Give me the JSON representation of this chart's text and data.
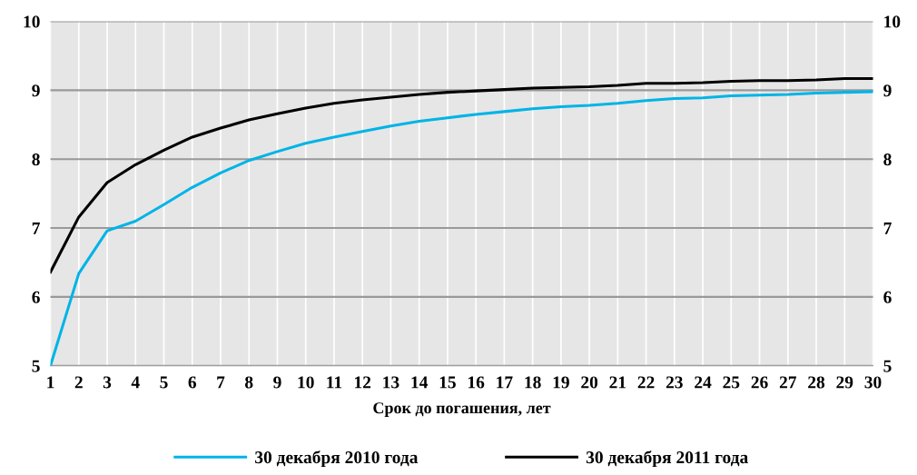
{
  "chart_data": {
    "type": "line",
    "xlabel": "Срок до погашения, лет",
    "categories": [
      "1",
      "2",
      "3",
      "4",
      "5",
      "6",
      "7",
      "8",
      "9",
      "10",
      "11",
      "12",
      "13",
      "14",
      "15",
      "16",
      "17",
      "18",
      "19",
      "20",
      "21",
      "22",
      "23",
      "24",
      "25",
      "26",
      "27",
      "28",
      "29",
      "30"
    ],
    "series": [
      {
        "name": "30 декабря 2010 года",
        "color": "#00b4e6",
        "values": [
          5.0,
          6.34,
          6.96,
          7.1,
          7.34,
          7.59,
          7.8,
          7.98,
          8.11,
          8.23,
          8.32,
          8.4,
          8.48,
          8.55,
          8.6,
          8.65,
          8.69,
          8.73,
          8.76,
          8.78,
          8.81,
          8.85,
          8.88,
          8.89,
          8.92,
          8.93,
          8.94,
          8.96,
          8.97,
          8.98
        ]
      },
      {
        "name": "30 декабря 2011 года",
        "color": "#000000",
        "values": [
          6.36,
          7.16,
          7.66,
          7.92,
          8.13,
          8.32,
          8.45,
          8.57,
          8.66,
          8.74,
          8.81,
          8.86,
          8.9,
          8.94,
          8.97,
          8.99,
          9.01,
          9.03,
          9.04,
          9.05,
          9.07,
          9.1,
          9.1,
          9.11,
          9.13,
          9.14,
          9.14,
          9.15,
          9.17,
          9.17
        ]
      }
    ],
    "ylim": [
      5,
      10
    ],
    "yticks": [
      5,
      6,
      7,
      8,
      9,
      10
    ],
    "y2lim": [
      5,
      10
    ],
    "y2ticks": [
      5,
      6,
      7,
      8,
      9,
      10
    ],
    "grid": true,
    "legend": "bottom",
    "marker": "none",
    "line_style": "solid"
  }
}
